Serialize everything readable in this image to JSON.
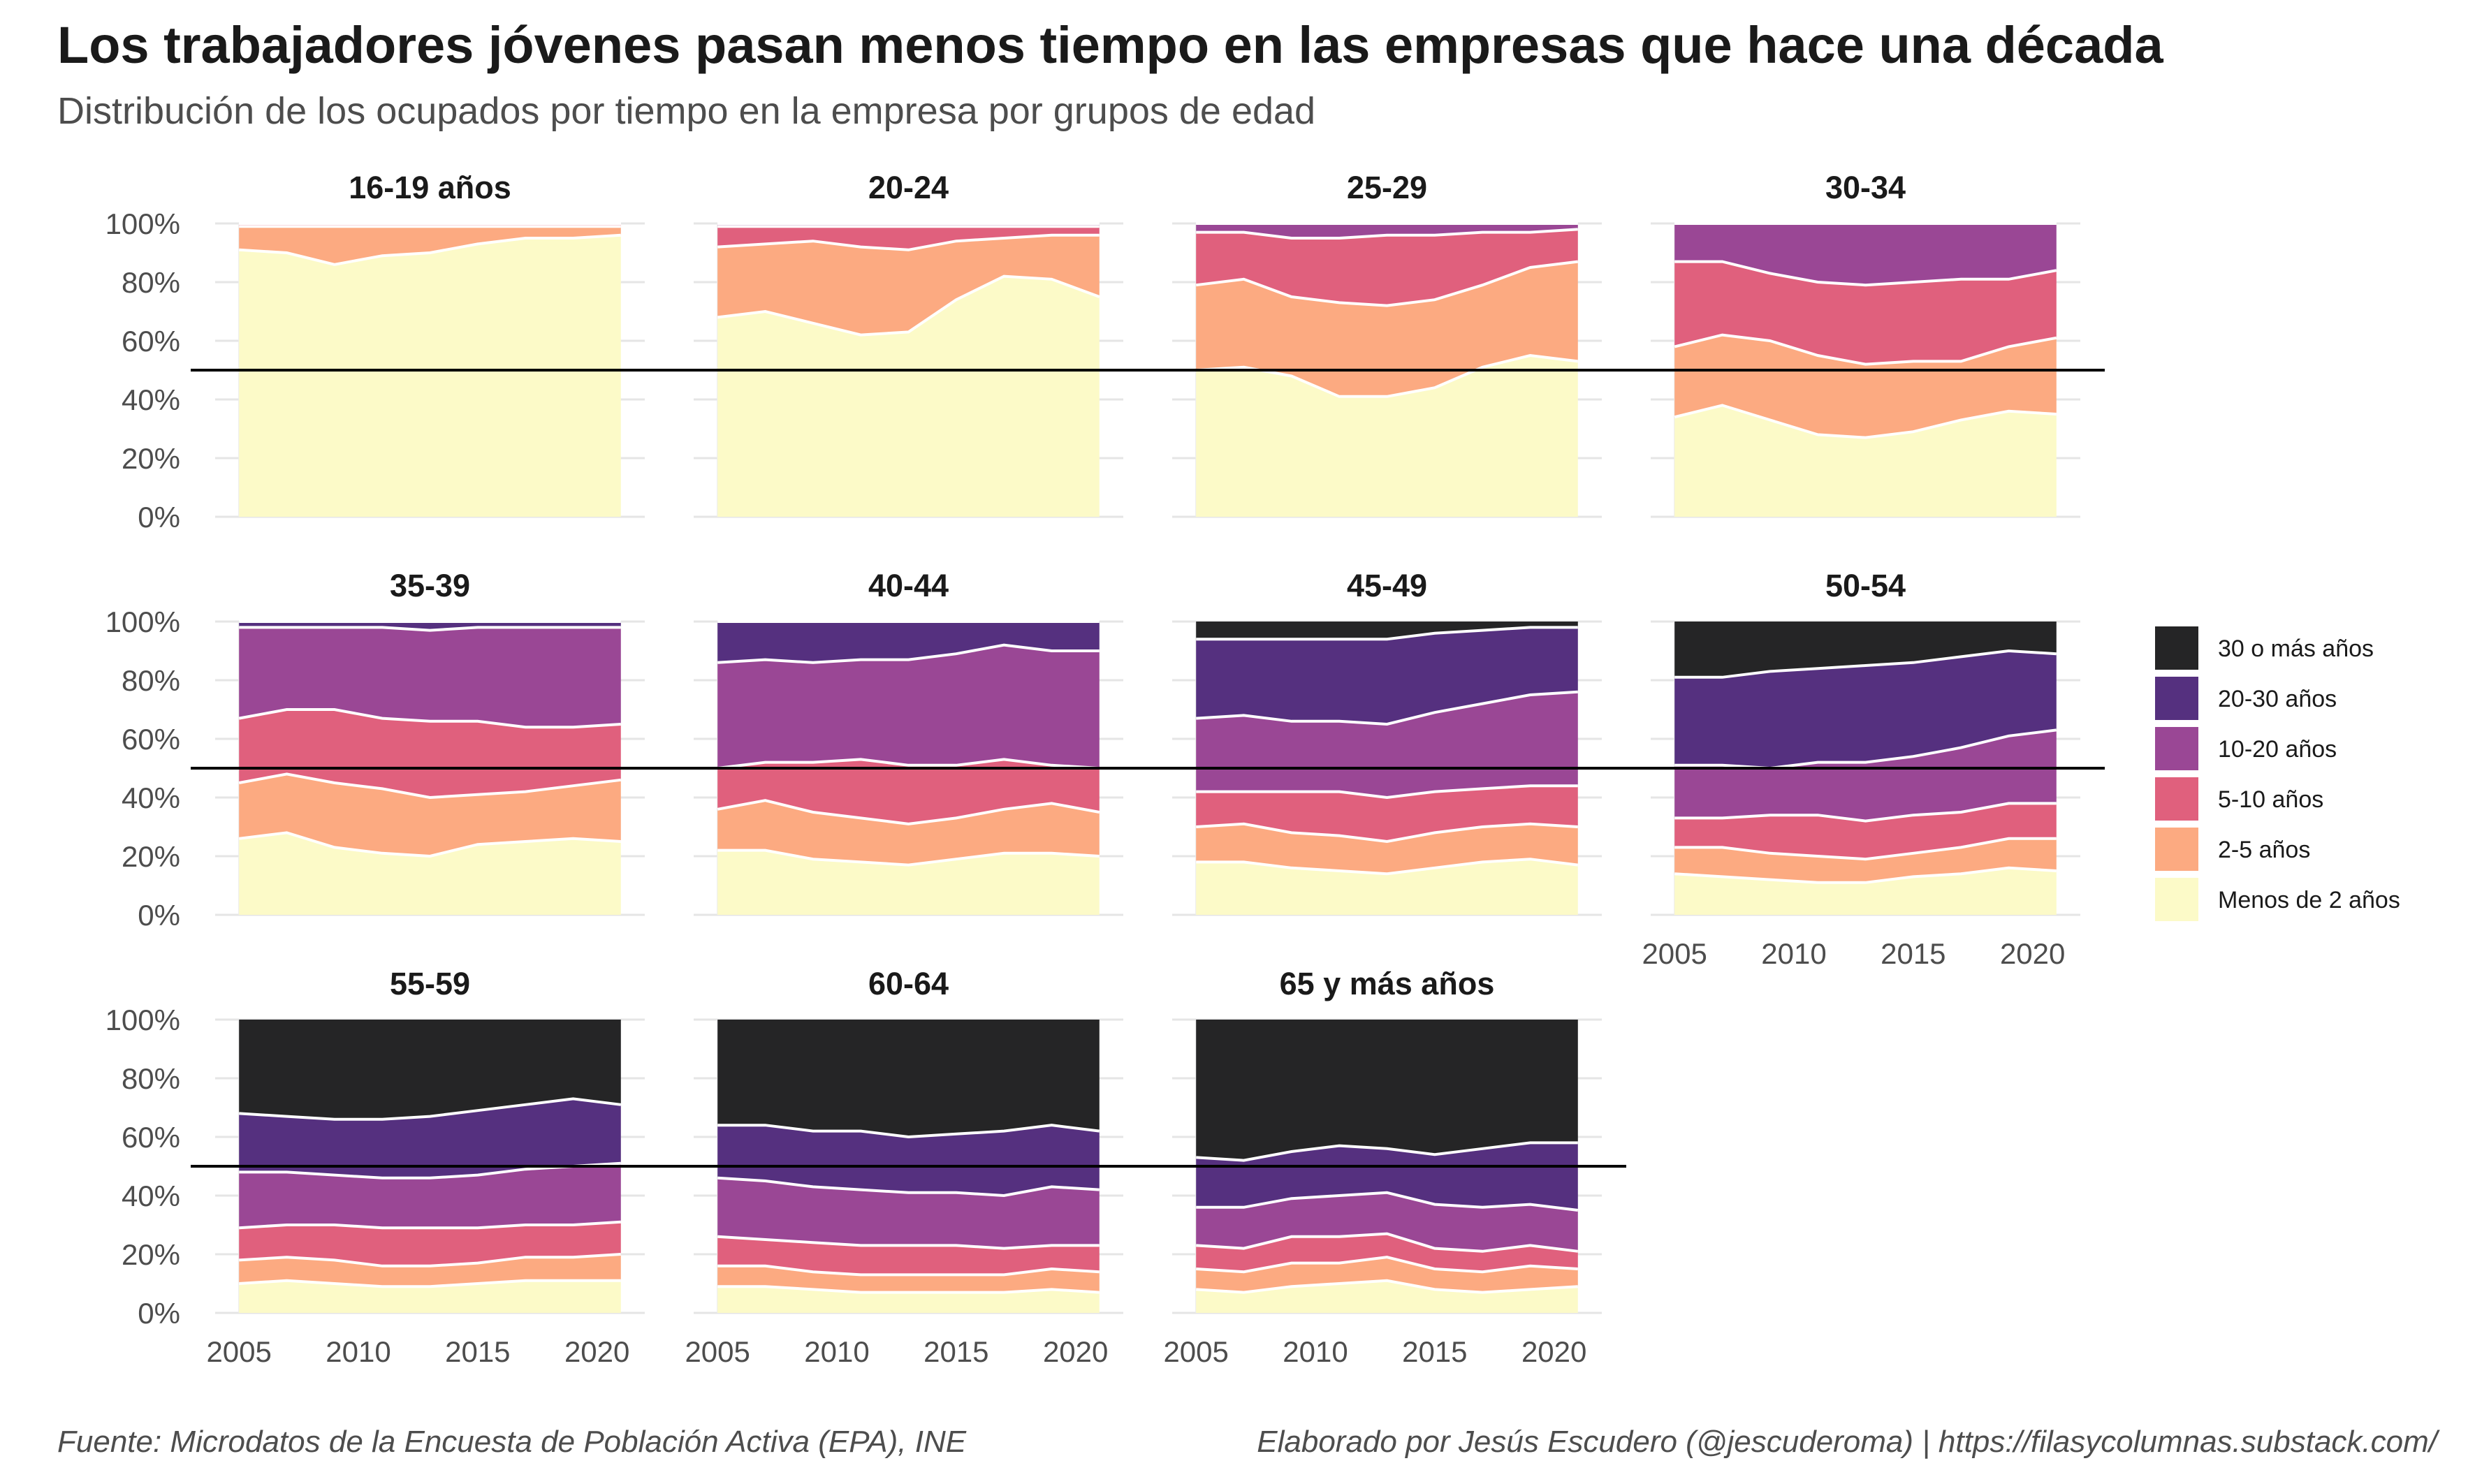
{
  "title": "Los trabajadores jóvenes pasan menos tiempo en las empresas que hace una década",
  "subtitle": "Distribución de los ocupados por tiempo en la empresa por grupos de edad",
  "caption_left": "Fuente: Microdatos de la Encuesta de Población Activa (EPA), INE",
  "caption_right": "Elaborado por Jesús Escudero (@jescuderoma) | https://filasycolumnas.substack.com/",
  "chart_data": {
    "type": "area",
    "stacked": true,
    "facet": "grupo de edad",
    "x": [
      2005,
      2007,
      2009,
      2011,
      2013,
      2015,
      2017,
      2019,
      2021
    ],
    "x_ticks": [
      2005,
      2010,
      2015,
      2020
    ],
    "x_tick_labels": [
      "2005",
      "2010",
      "2015",
      "2020"
    ],
    "xlim": [
      2004,
      2022
    ],
    "y_ticks": [
      0,
      20,
      40,
      60,
      80,
      100
    ],
    "y_tick_labels": [
      "0%",
      "20%",
      "40%",
      "60%",
      "80%",
      "100%"
    ],
    "ylim": [
      0,
      100
    ],
    "reference_line": 50,
    "grid": true,
    "legend_position": "right",
    "categories_order_bottom_to_top": [
      "Menos de 2 años",
      "2-5 años",
      "5-10 años",
      "10-20 años",
      "20-30 años",
      "30 o más años"
    ],
    "legend": [
      {
        "label": "30 o más años",
        "color": "#252526"
      },
      {
        "label": "20-30 años",
        "color": "#55307f"
      },
      {
        "label": "10-20 años",
        "color": "#9a4795"
      },
      {
        "label": "5-10 años",
        "color": "#e0607d"
      },
      {
        "label": "2-5 años",
        "color": "#fcaa81"
      },
      {
        "label": "Menos de 2 años",
        "color": "#fcfac8"
      }
    ],
    "panels": [
      {
        "label": "16-19 años",
        "series": [
          {
            "name": "Menos de 2 años",
            "values": [
              91,
              90,
              86,
              89,
              90,
              93,
              95,
              95,
              96
            ]
          },
          {
            "name": "2-5 años",
            "values": [
              8,
              9,
              13,
              10,
              9,
              6,
              4,
              4,
              3
            ]
          },
          {
            "name": "5-10 años",
            "values": [
              1,
              1,
              1,
              1,
              1,
              1,
              1,
              1,
              1
            ]
          },
          {
            "name": "10-20 años",
            "values": [
              0,
              0,
              0,
              0,
              0,
              0,
              0,
              0,
              0
            ]
          },
          {
            "name": "20-30 años",
            "values": [
              0,
              0,
              0,
              0,
              0,
              0,
              0,
              0,
              0
            ]
          },
          {
            "name": "30 o más años",
            "values": [
              0,
              0,
              0,
              0,
              0,
              0,
              0,
              0,
              0
            ]
          }
        ]
      },
      {
        "label": "20-24",
        "series": [
          {
            "name": "Menos de 2 años",
            "values": [
              68,
              70,
              66,
              62,
              63,
              74,
              82,
              81,
              75
            ]
          },
          {
            "name": "2-5 años",
            "values": [
              24,
              23,
              28,
              30,
              28,
              20,
              13,
              15,
              21
            ]
          },
          {
            "name": "5-10 años",
            "values": [
              7,
              6,
              5,
              7,
              8,
              5,
              4,
              3,
              3
            ]
          },
          {
            "name": "10-20 años",
            "values": [
              1,
              1,
              1,
              1,
              1,
              1,
              1,
              1,
              1
            ]
          },
          {
            "name": "20-30 años",
            "values": [
              0,
              0,
              0,
              0,
              0,
              0,
              0,
              0,
              0
            ]
          },
          {
            "name": "30 o más años",
            "values": [
              0,
              0,
              0,
              0,
              0,
              0,
              0,
              0,
              0
            ]
          }
        ]
      },
      {
        "label": "25-29",
        "series": [
          {
            "name": "Menos de 2 años",
            "values": [
              50,
              51,
              48,
              41,
              41,
              44,
              51,
              55,
              53
            ]
          },
          {
            "name": "2-5 años",
            "values": [
              29,
              30,
              27,
              32,
              31,
              30,
              28,
              30,
              34
            ]
          },
          {
            "name": "5-10 años",
            "values": [
              18,
              16,
              20,
              22,
              24,
              22,
              18,
              12,
              11
            ]
          },
          {
            "name": "10-20 años",
            "values": [
              3,
              3,
              5,
              5,
              4,
              4,
              3,
              3,
              2
            ]
          },
          {
            "name": "20-30 años",
            "values": [
              0,
              0,
              0,
              0,
              0,
              0,
              0,
              0,
              0
            ]
          },
          {
            "name": "30 o más años",
            "values": [
              0,
              0,
              0,
              0,
              0,
              0,
              0,
              0,
              0
            ]
          }
        ]
      },
      {
        "label": "30-34",
        "series": [
          {
            "name": "Menos de 2 años",
            "values": [
              34,
              38,
              33,
              28,
              27,
              29,
              33,
              36,
              35
            ]
          },
          {
            "name": "2-5 años",
            "values": [
              24,
              24,
              27,
              27,
              25,
              24,
              20,
              22,
              26
            ]
          },
          {
            "name": "5-10 años",
            "values": [
              29,
              25,
              23,
              25,
              27,
              27,
              28,
              23,
              23
            ]
          },
          {
            "name": "10-20 años",
            "values": [
              13,
              13,
              17,
              20,
              21,
              20,
              19,
              19,
              16
            ]
          },
          {
            "name": "20-30 años",
            "values": [
              0,
              0,
              0,
              0,
              0,
              0,
              0,
              0,
              0
            ]
          },
          {
            "name": "30 o más años",
            "values": [
              0,
              0,
              0,
              0,
              0,
              0,
              0,
              0,
              0
            ]
          }
        ]
      },
      {
        "label": "35-39",
        "series": [
          {
            "name": "Menos de 2 años",
            "values": [
              26,
              28,
              23,
              21,
              20,
              24,
              25,
              26,
              25
            ]
          },
          {
            "name": "2-5 años",
            "values": [
              19,
              20,
              22,
              22,
              20,
              17,
              17,
              18,
              21
            ]
          },
          {
            "name": "5-10 años",
            "values": [
              22,
              22,
              25,
              24,
              26,
              25,
              22,
              20,
              19
            ]
          },
          {
            "name": "10-20 años",
            "values": [
              31,
              28,
              28,
              31,
              31,
              32,
              34,
              34,
              33
            ]
          },
          {
            "name": "20-30 años",
            "values": [
              2,
              2,
              2,
              2,
              3,
              2,
              2,
              2,
              2
            ]
          },
          {
            "name": "30 o más años",
            "values": [
              0,
              0,
              0,
              0,
              0,
              0,
              0,
              0,
              0
            ]
          }
        ]
      },
      {
        "label": "40-44",
        "series": [
          {
            "name": "Menos de 2 años",
            "values": [
              22,
              22,
              19,
              18,
              17,
              19,
              21,
              21,
              20
            ]
          },
          {
            "name": "2-5 años",
            "values": [
              14,
              17,
              16,
              15,
              14,
              14,
              15,
              17,
              15
            ]
          },
          {
            "name": "5-10 años",
            "values": [
              14,
              13,
              17,
              20,
              20,
              18,
              17,
              13,
              15
            ]
          },
          {
            "name": "10-20 años",
            "values": [
              36,
              35,
              34,
              34,
              36,
              38,
              39,
              39,
              40
            ]
          },
          {
            "name": "20-30 años",
            "values": [
              14,
              13,
              14,
              13,
              13,
              11,
              8,
              10,
              10
            ]
          },
          {
            "name": "30 o más años",
            "values": [
              0,
              0,
              0,
              0,
              0,
              0,
              0,
              0,
              0
            ]
          }
        ]
      },
      {
        "label": "45-49",
        "series": [
          {
            "name": "Menos de 2 años",
            "values": [
              18,
              18,
              16,
              15,
              14,
              16,
              18,
              19,
              17
            ]
          },
          {
            "name": "2-5 años",
            "values": [
              12,
              13,
              12,
              12,
              11,
              12,
              12,
              12,
              13
            ]
          },
          {
            "name": "5-10 años",
            "values": [
              12,
              11,
              14,
              15,
              15,
              14,
              13,
              13,
              14
            ]
          },
          {
            "name": "10-20 años",
            "values": [
              25,
              26,
              24,
              24,
              25,
              27,
              29,
              31,
              32
            ]
          },
          {
            "name": "20-30 años",
            "values": [
              27,
              26,
              28,
              28,
              29,
              27,
              25,
              23,
              22
            ]
          },
          {
            "name": "30 o más años",
            "values": [
              6,
              6,
              6,
              6,
              6,
              4,
              3,
              2,
              2
            ]
          }
        ]
      },
      {
        "label": "50-54",
        "series": [
          {
            "name": "Menos de 2 años",
            "values": [
              14,
              13,
              12,
              11,
              11,
              13,
              14,
              16,
              15
            ]
          },
          {
            "name": "2-5 años",
            "values": [
              9,
              10,
              9,
              9,
              8,
              8,
              9,
              10,
              11
            ]
          },
          {
            "name": "5-10 años",
            "values": [
              10,
              10,
              13,
              14,
              13,
              13,
              12,
              12,
              12
            ]
          },
          {
            "name": "10-20 años",
            "values": [
              18,
              18,
              16,
              18,
              20,
              20,
              22,
              23,
              25
            ]
          },
          {
            "name": "20-30 años",
            "values": [
              30,
              30,
              33,
              32,
              33,
              32,
              31,
              29,
              26
            ]
          },
          {
            "name": "30 o más años",
            "values": [
              19,
              19,
              17,
              16,
              15,
              14,
              12,
              10,
              11
            ]
          }
        ]
      },
      {
        "label": "55-59",
        "series": [
          {
            "name": "Menos de 2 años",
            "values": [
              10,
              11,
              10,
              9,
              9,
              10,
              11,
              11,
              11
            ]
          },
          {
            "name": "2-5 años",
            "values": [
              8,
              8,
              8,
              7,
              7,
              7,
              8,
              8,
              9
            ]
          },
          {
            "name": "5-10 años",
            "values": [
              11,
              11,
              12,
              13,
              13,
              12,
              11,
              11,
              11
            ]
          },
          {
            "name": "10-20 años",
            "values": [
              19,
              18,
              17,
              17,
              17,
              18,
              19,
              20,
              20
            ]
          },
          {
            "name": "20-30 años",
            "values": [
              20,
              19,
              19,
              20,
              21,
              22,
              22,
              23,
              20
            ]
          },
          {
            "name": "30 o más años",
            "values": [
              32,
              33,
              34,
              34,
              33,
              31,
              29,
              27,
              29
            ]
          }
        ]
      },
      {
        "label": "60-64",
        "series": [
          {
            "name": "Menos de 2 años",
            "values": [
              9,
              9,
              8,
              7,
              7,
              7,
              7,
              8,
              7
            ]
          },
          {
            "name": "2-5 años",
            "values": [
              7,
              7,
              6,
              6,
              6,
              6,
              6,
              7,
              7
            ]
          },
          {
            "name": "5-10 años",
            "values": [
              10,
              9,
              10,
              10,
              10,
              10,
              9,
              8,
              9
            ]
          },
          {
            "name": "10-20 años",
            "values": [
              20,
              20,
              19,
              19,
              18,
              18,
              18,
              20,
              19
            ]
          },
          {
            "name": "20-30 años",
            "values": [
              18,
              19,
              19,
              20,
              19,
              20,
              22,
              21,
              20
            ]
          },
          {
            "name": "30 o más años",
            "values": [
              36,
              36,
              38,
              38,
              40,
              39,
              38,
              36,
              38
            ]
          }
        ]
      },
      {
        "label": "65 y más años",
        "series": [
          {
            "name": "Menos de 2 años",
            "values": [
              8,
              7,
              9,
              10,
              11,
              8,
              7,
              8,
              9
            ]
          },
          {
            "name": "2-5 años",
            "values": [
              7,
              7,
              8,
              7,
              8,
              7,
              7,
              8,
              6
            ]
          },
          {
            "name": "5-10 años",
            "values": [
              8,
              8,
              9,
              9,
              8,
              7,
              7,
              7,
              6
            ]
          },
          {
            "name": "10-20 años",
            "values": [
              13,
              14,
              13,
              14,
              14,
              15,
              15,
              14,
              14
            ]
          },
          {
            "name": "20-30 años",
            "values": [
              17,
              16,
              16,
              17,
              15,
              17,
              20,
              21,
              23
            ]
          },
          {
            "name": "30 o más años",
            "values": [
              47,
              48,
              45,
              43,
              44,
              46,
              44,
              42,
              42
            ]
          }
        ]
      }
    ]
  }
}
